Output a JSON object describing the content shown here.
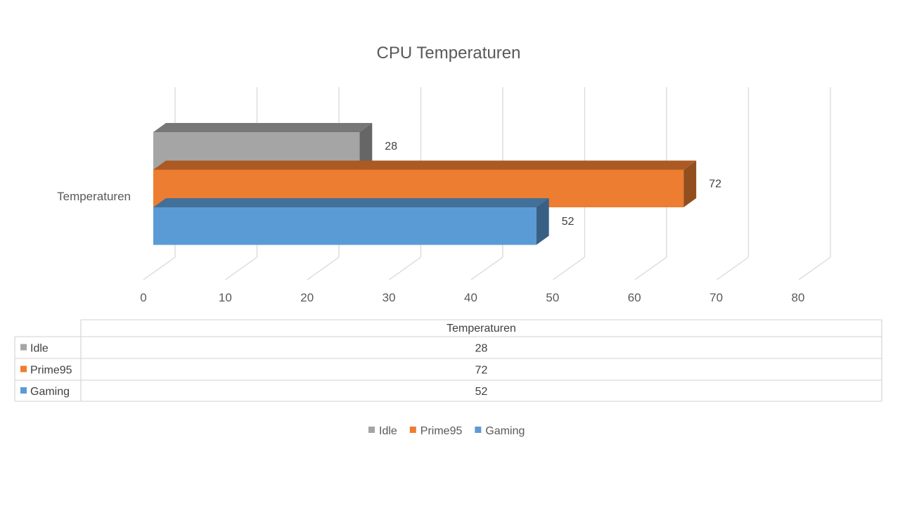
{
  "chart_data": {
    "type": "bar",
    "orientation": "horizontal",
    "three_d": true,
    "title": "CPU Temperaturen",
    "categories": [
      "Temperaturen"
    ],
    "series": [
      {
        "name": "Idle",
        "values": [
          28
        ],
        "color": "#A5A5A5"
      },
      {
        "name": "Prime95",
        "values": [
          72
        ],
        "color": "#ED7D31"
      },
      {
        "name": "Gaming",
        "values": [
          52
        ],
        "color": "#5B9BD5"
      }
    ],
    "xlim": [
      0,
      80
    ],
    "ticks": [
      0,
      10,
      20,
      30,
      40,
      50,
      60,
      70,
      80
    ],
    "grid": true,
    "data_table": true,
    "legend_position": "bottom"
  }
}
